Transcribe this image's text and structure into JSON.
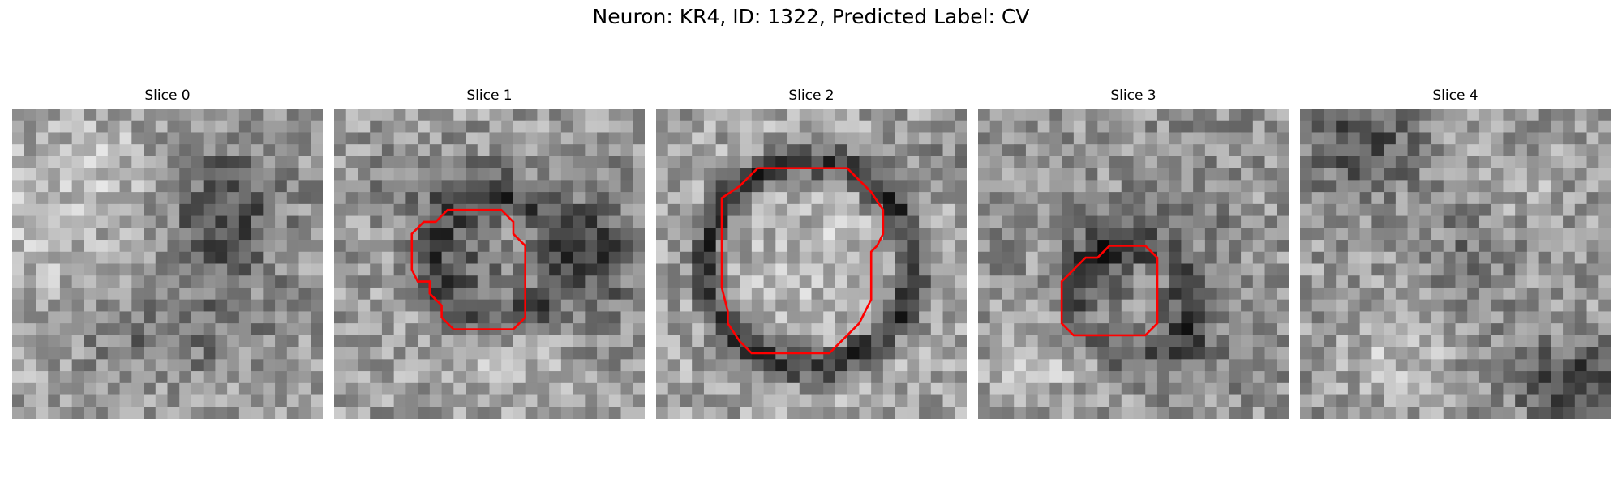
{
  "figure": {
    "title": "Neuron: KR4, ID: 1322, Predicted Label: CV"
  },
  "panels": [
    {
      "title": "Slice 0",
      "image": "noisy-grayscale-micrograph",
      "has_outline": false
    },
    {
      "title": "Slice 1",
      "image": "noisy-grayscale-micrograph-with-dark-ring",
      "has_outline": true
    },
    {
      "title": "Slice 2",
      "image": "noisy-grayscale-micrograph-with-large-dark-ring",
      "has_outline": true
    },
    {
      "title": "Slice 3",
      "image": "noisy-grayscale-micrograph-with-small-vesicle",
      "has_outline": true
    },
    {
      "title": "Slice 4",
      "image": "noisy-grayscale-micrograph",
      "has_outline": false
    }
  ],
  "colors": {
    "outline": "#ff0000",
    "background": "#ffffff"
  }
}
